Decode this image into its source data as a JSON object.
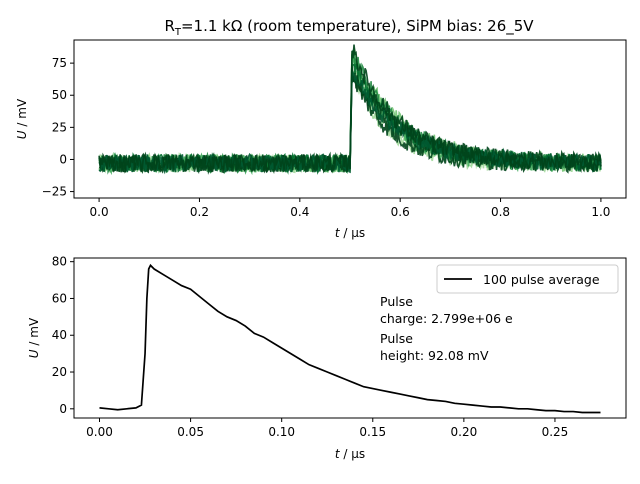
{
  "chart_data": [
    {
      "type": "line",
      "title_main": "R",
      "title_sub": "T",
      "title_rest": "=1.1 kΩ (room temperature), SiPM bias: 26_5V",
      "xlabel_var": "t",
      "xlabel_unit": " / μs",
      "ylabel_var": "U",
      "ylabel_unit": " / mV",
      "xlim": [
        -0.05,
        1.05
      ],
      "ylim": [
        -30,
        93
      ],
      "xticks": [
        0.0,
        0.2,
        0.4,
        0.6,
        0.8,
        1.0
      ],
      "xtick_labels": [
        "0.0",
        "0.2",
        "0.4",
        "0.6",
        "0.8",
        "1.0"
      ],
      "yticks": [
        -25,
        0,
        25,
        50,
        75
      ],
      "ytick_labels": [
        "−25",
        "0",
        "25",
        "50",
        "75"
      ],
      "pulse": {
        "baseline": -3,
        "noise": 7,
        "start": 0.5,
        "peak": 83,
        "decay_end": 0.8
      },
      "series_colors": [
        "#c7e9c0",
        "#a1d99b",
        "#74c476",
        "#41ab5d",
        "#238b45",
        "#006d2c",
        "#00441b",
        "#00441b",
        "#005a32",
        "#00441b"
      ]
    },
    {
      "type": "line",
      "xlabel_var": "t",
      "xlabel_unit": " / μs",
      "ylabel_var": "U",
      "ylabel_unit": " / mV",
      "xlim": [
        -0.014,
        0.289
      ],
      "ylim": [
        -5,
        82
      ],
      "xticks": [
        0.0,
        0.05,
        0.1,
        0.15,
        0.2,
        0.25
      ],
      "xtick_labels": [
        "0.00",
        "0.05",
        "0.10",
        "0.15",
        "0.20",
        "0.25"
      ],
      "yticks": [
        0,
        20,
        40,
        60,
        80
      ],
      "ytick_labels": [
        "0",
        "20",
        "40",
        "60",
        "80"
      ],
      "series": [
        {
          "name": "100 pulse average",
          "color": "#000000",
          "x": [
            0.0,
            0.005,
            0.01,
            0.015,
            0.02,
            0.023,
            0.025,
            0.026,
            0.027,
            0.028,
            0.03,
            0.035,
            0.04,
            0.045,
            0.05,
            0.055,
            0.06,
            0.065,
            0.07,
            0.075,
            0.08,
            0.085,
            0.09,
            0.095,
            0.1,
            0.105,
            0.11,
            0.115,
            0.12,
            0.125,
            0.13,
            0.135,
            0.14,
            0.145,
            0.15,
            0.155,
            0.16,
            0.165,
            0.17,
            0.175,
            0.18,
            0.185,
            0.19,
            0.195,
            0.2,
            0.205,
            0.21,
            0.215,
            0.22,
            0.225,
            0.23,
            0.235,
            0.24,
            0.245,
            0.25,
            0.255,
            0.26,
            0.265,
            0.27,
            0.275
          ],
          "y": [
            0.5,
            0,
            -0.5,
            0,
            0.5,
            2,
            30,
            60,
            76,
            78,
            76,
            73,
            70,
            67,
            65,
            61,
            57,
            53,
            50,
            48,
            45,
            41,
            39,
            36,
            33,
            30,
            27,
            24,
            22,
            20,
            18,
            16,
            14,
            12,
            11,
            10,
            9,
            8,
            7,
            6,
            5,
            4.5,
            4,
            3,
            2.5,
            2,
            1.5,
            1,
            1,
            0.5,
            0,
            0,
            -0.5,
            -1,
            -1,
            -1.5,
            -1.5,
            -2,
            -2,
            -2
          ]
        }
      ],
      "annotations": [
        {
          "lines": [
            "Pulse",
            "charge: 2.799e+06 e"
          ]
        },
        {
          "lines": [
            "Pulse",
            "height: 92.08 mV"
          ]
        }
      ]
    }
  ]
}
